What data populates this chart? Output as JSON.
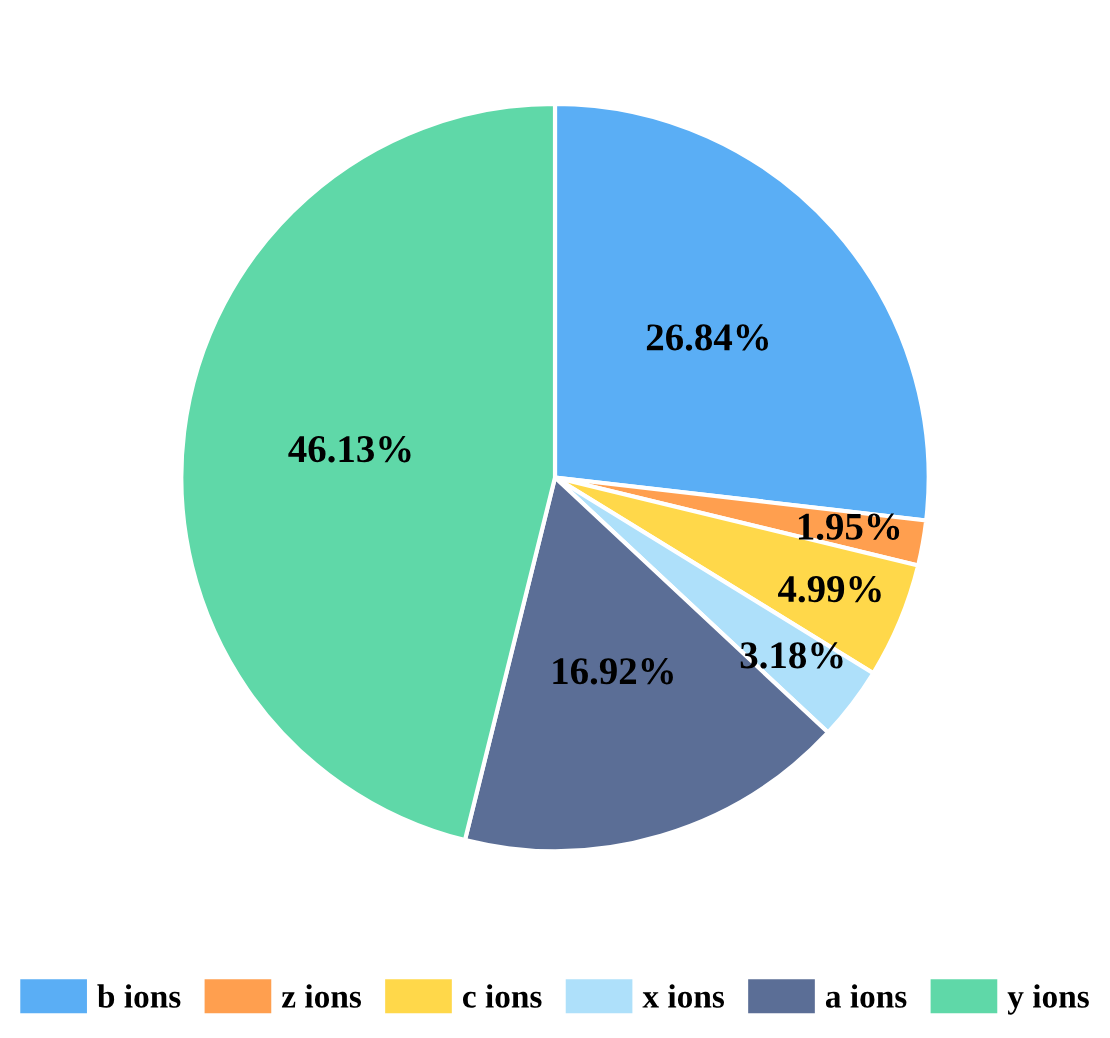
{
  "chart_data": {
    "type": "pie",
    "categories": [
      "b ions",
      "z ions",
      "c ions",
      "x ions",
      "a ions",
      "y ions"
    ],
    "values": [
      26.84,
      1.95,
      4.99,
      3.18,
      16.92,
      46.13
    ],
    "value_labels": [
      "26.84%",
      "1.95%",
      "4.99%",
      "3.18%",
      "16.92%",
      "46.13%"
    ],
    "colors": [
      "#5aaef5",
      "#ff9f4f",
      "#ffd84a",
      "#aee0fa",
      "#5b6e96",
      "#5fd8a8"
    ],
    "legend": "bottom"
  }
}
